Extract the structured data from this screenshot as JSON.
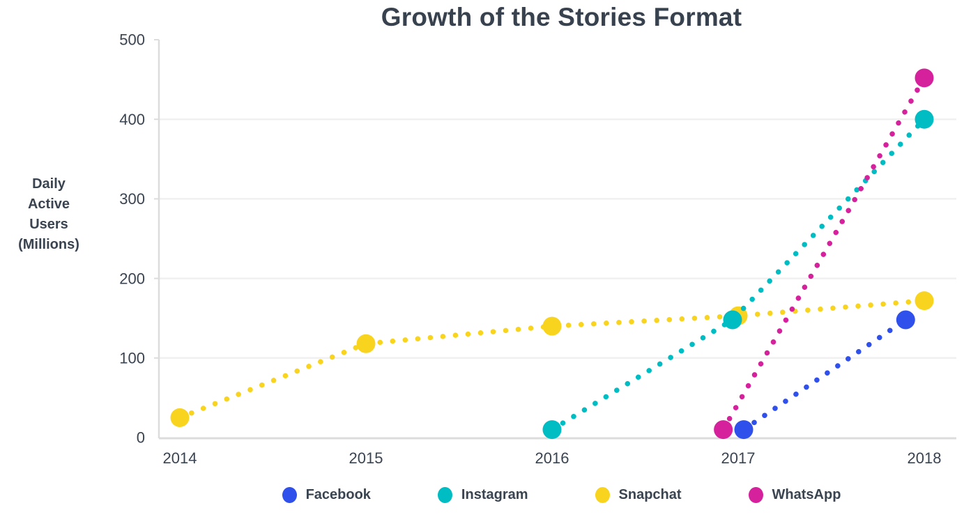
{
  "title": "Growth of the Stories Format",
  "y_axis_label_lines": [
    "Daily",
    "Active",
    "Users",
    "(Millions)"
  ],
  "colors": {
    "background": "#ffffff",
    "text": "#3a4450",
    "title_text": "#38414e",
    "axis_line": "#dcdcdc",
    "grid_line": "#f0f0f0",
    "facebook": "#3050ec",
    "instagram": "#00bdc4",
    "snapchat": "#f9d41f",
    "whatsapp": "#d6219c"
  },
  "chart_data": {
    "type": "line",
    "title": "Growth of the Stories Format",
    "ylabel": "Daily Active Users (Millions)",
    "xlabel": "",
    "line_style": "dotted",
    "grid": true,
    "legend_position": "bottom",
    "x_ticks": [
      2014,
      2015,
      2016,
      2017,
      2018
    ],
    "y_ticks": [
      0,
      100,
      200,
      300,
      400,
      500
    ],
    "ylim": [
      0,
      500
    ],
    "xlim": [
      2014,
      2018
    ],
    "series": [
      {
        "name": "Snapchat",
        "color": "#f9d41f",
        "points": [
          [
            2014,
            25
          ],
          [
            2015,
            118
          ],
          [
            2016,
            140
          ],
          [
            2017,
            153
          ],
          [
            2018,
            172
          ]
        ]
      },
      {
        "name": "Instagram",
        "color": "#00bdc4",
        "points": [
          [
            2016,
            10
          ],
          [
            2016.97,
            148
          ],
          [
            2018,
            400
          ]
        ]
      },
      {
        "name": "Facebook",
        "color": "#3050ec",
        "points": [
          [
            2017.03,
            10
          ],
          [
            2017.9,
            148
          ]
        ]
      },
      {
        "name": "WhatsApp",
        "color": "#d6219c",
        "points": [
          [
            2016.92,
            10
          ],
          [
            2018,
            452
          ]
        ]
      }
    ],
    "legend_order": [
      "Facebook",
      "Instagram",
      "Snapchat",
      "WhatsApp"
    ]
  }
}
